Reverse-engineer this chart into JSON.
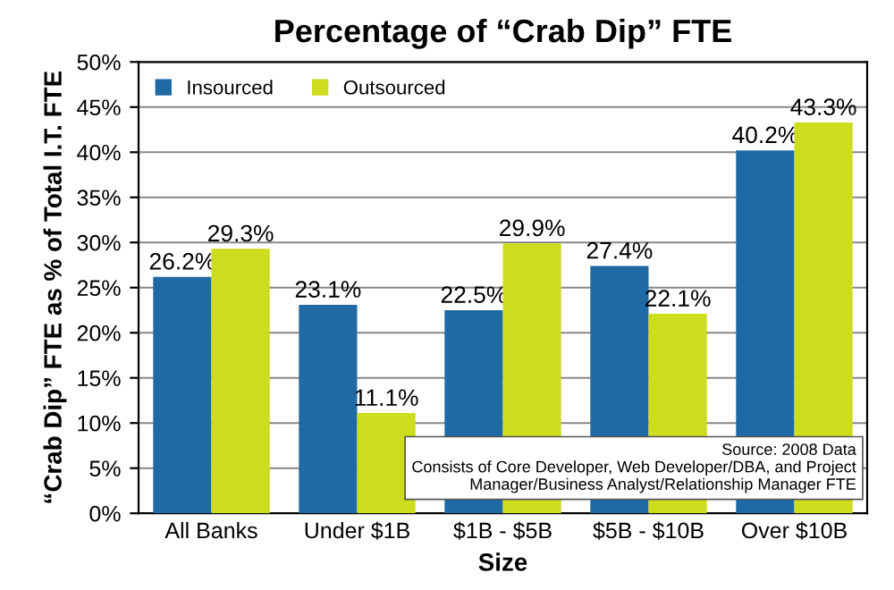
{
  "chart_data": {
    "type": "bar",
    "title": "Percentage of “Crab Dip” FTE",
    "xlabel": "Size",
    "ylabel": "“Crab Dip” FTE as % of Total I.T. FTE",
    "categories": [
      "All Banks",
      "Under $1B",
      "$1B - $5B",
      "$5B - $10B",
      "Over $10B"
    ],
    "series": [
      {
        "name": "Insourced",
        "color": "#1f6aa5",
        "values": [
          26.2,
          23.1,
          22.5,
          27.4,
          40.2
        ],
        "value_labels": [
          "26.2%",
          "23.1%",
          "22.5%",
          "27.4%",
          "40.2%"
        ]
      },
      {
        "name": "Outsourced",
        "color": "#cddc1c",
        "values": [
          29.3,
          11.1,
          29.9,
          22.1,
          43.3
        ],
        "value_labels": [
          "29.3%",
          "11.1%",
          "29.9%",
          "22.1%",
          "43.3%"
        ]
      }
    ],
    "ylim": [
      0,
      50
    ],
    "yticks": [
      {
        "value": 0,
        "label": "0%"
      },
      {
        "value": 5,
        "label": "5%"
      },
      {
        "value": 10,
        "label": "10%"
      },
      {
        "value": 15,
        "label": "15%"
      },
      {
        "value": 20,
        "label": "20%"
      },
      {
        "value": 25,
        "label": "25%"
      },
      {
        "value": 30,
        "label": "30%"
      },
      {
        "value": 35,
        "label": "35%"
      },
      {
        "value": 40,
        "label": "40%"
      },
      {
        "value": 45,
        "label": "45%"
      },
      {
        "value": 50,
        "label": "50%"
      }
    ],
    "grid": "y",
    "legend": "top left",
    "annotations": [
      "Source: 2008 Data\nConsists of Core Developer, Web Developer/DBA, and Project\nManager/Business Analyst/Relationship Manager FTE"
    ]
  }
}
